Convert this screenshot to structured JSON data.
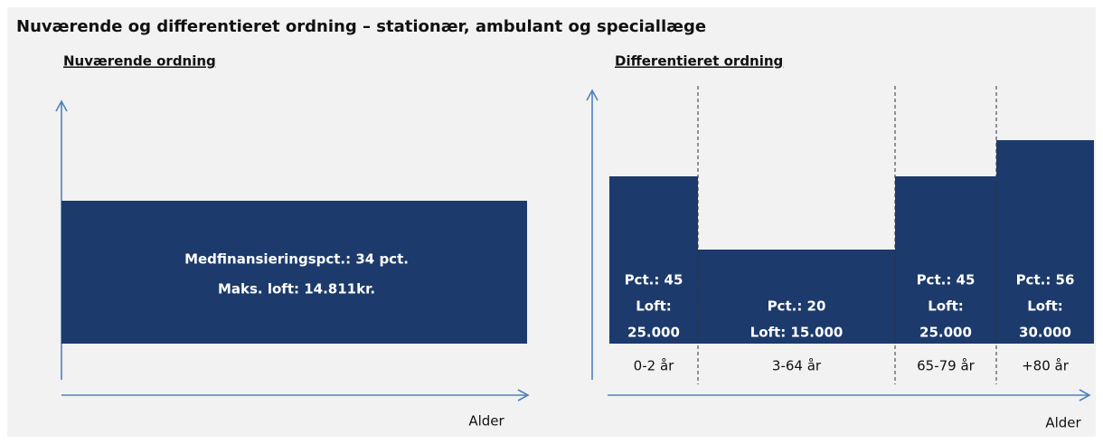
{
  "title": "Nuværende og differentieret ordning – stationær, ambulant og speciallæge",
  "current": {
    "heading": "Nuværende ordning",
    "lines": [
      "Medfinansieringspct.: 34 pct.",
      "Maks. loft: 14.811kr."
    ],
    "axis_label": "Alder"
  },
  "differentiated": {
    "heading": "Differentieret ordning",
    "segments": [
      {
        "lines": [
          "Pct.: 45",
          "Loft:",
          "25.000"
        ],
        "age": "0-2 år"
      },
      {
        "lines": [
          "Pct.: 20",
          "Loft: 15.000"
        ],
        "age": "3-64 år"
      },
      {
        "lines": [
          "Pct.: 45",
          "Loft:",
          "25.000"
        ],
        "age": "65-79 år"
      },
      {
        "lines": [
          "Pct.: 56",
          "Loft:",
          "30.000"
        ],
        "age": "+80 år"
      }
    ],
    "axis_label": "Alder"
  }
}
